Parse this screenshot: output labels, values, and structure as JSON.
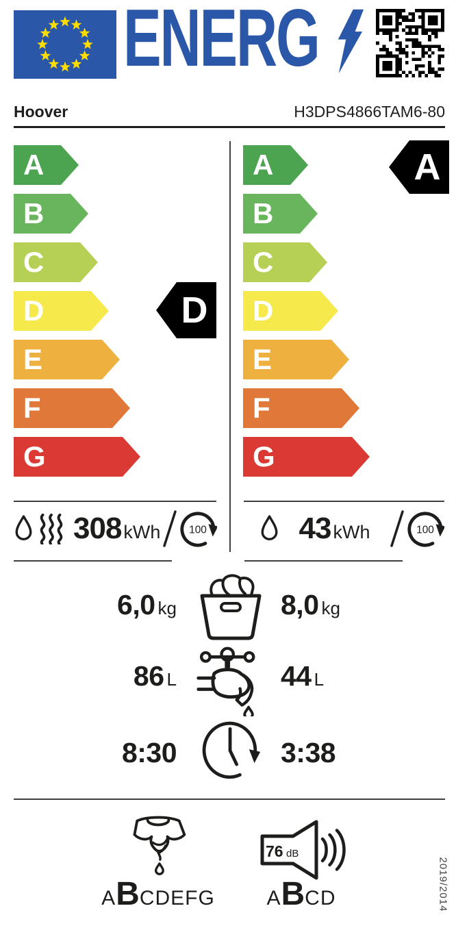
{
  "header": {
    "energy_logo": "ENERG",
    "brand": "Hoover",
    "model": "H3DPS4866TAM6-80"
  },
  "colors": {
    "brand_blue": "#2b57a8",
    "star_yellow": "#ffdd00",
    "ink": "#1d1d1b",
    "line_gray": "#3f3f3e",
    "indicator_black": "#000000"
  },
  "rating_scale": [
    {
      "grade": "A",
      "color": "#4ca350"
    },
    {
      "grade": "B",
      "color": "#68b55e"
    },
    {
      "grade": "C",
      "color": "#b5d054"
    },
    {
      "grade": "D",
      "color": "#f5e94c"
    },
    {
      "grade": "E",
      "color": "#eeb03f"
    },
    {
      "grade": "F",
      "color": "#e0783a"
    },
    {
      "grade": "G",
      "color": "#da3a33"
    }
  ],
  "complete_cycle": {
    "rating": "D",
    "energy_kwh": "308",
    "energy_unit": "kWh",
    "cycles": "100"
  },
  "washing_cycle": {
    "rating": "A",
    "energy_kwh": "43",
    "energy_unit": "kWh",
    "cycles": "100"
  },
  "metrics": {
    "capacity_left": "6,0",
    "capacity_right": "8,0",
    "capacity_unit": "kg",
    "water_left": "86",
    "water_right": "44",
    "water_unit": "L",
    "duration_left": "8:30",
    "duration_right": "3:38"
  },
  "spin_class": {
    "prefix": "A",
    "value": "B",
    "suffix": "CDEFG"
  },
  "noise": {
    "level": "76",
    "unit": "dB",
    "prefix": "A",
    "value": "B",
    "suffix": "CD"
  },
  "regulation": "2019/2014",
  "icons": {
    "left_energy": [
      "water-drop-icon",
      "heat-waves-icon"
    ],
    "right_energy": [
      "water-drop-icon"
    ],
    "per_cycles": "cycles-circle-icon",
    "capacity": "laundry-basket-icon",
    "water": "tap-icon",
    "duration": "clock-icon",
    "spin": "wrung-shirt-icon",
    "noise": "speaker-icon",
    "logo": "lightning-bolt-icon",
    "flag": "eu-flag"
  }
}
